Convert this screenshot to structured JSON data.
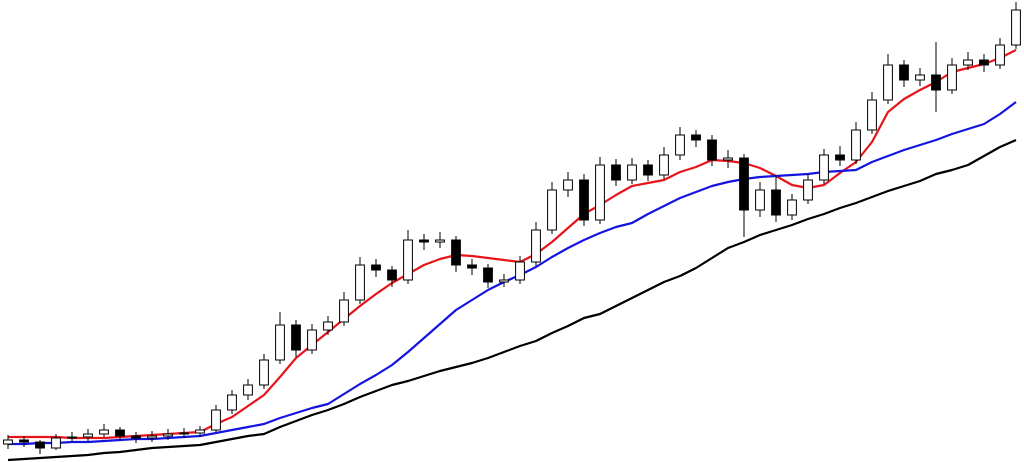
{
  "chart_data": {
    "type": "candlestick",
    "x": [
      0,
      1,
      2,
      3,
      4,
      5,
      6,
      7,
      8,
      9,
      10,
      11,
      12,
      13,
      14,
      15,
      16,
      17,
      18,
      19,
      20,
      21,
      22,
      23,
      24,
      25,
      26,
      27,
      28,
      29,
      30,
      31,
      32,
      33,
      34,
      35,
      36,
      37,
      38,
      39,
      40,
      41,
      42,
      43,
      44,
      45,
      46,
      47,
      48,
      49,
      50,
      51,
      52,
      53,
      54,
      55,
      56,
      57,
      58,
      59,
      60,
      61,
      62,
      63
    ],
    "open": [
      18,
      22,
      20,
      14,
      24,
      25,
      28,
      32,
      26,
      24,
      26,
      28,
      29,
      32,
      52,
      67,
      77,
      102,
      137,
      112,
      132,
      140,
      162,
      197,
      192,
      182,
      222,
      220,
      222,
      197,
      194,
      180,
      182,
      200,
      232,
      272,
      282,
      242,
      297,
      282,
      297,
      287,
      307,
      327,
      322,
      302,
      304,
      252,
      272,
      247,
      262,
      282,
      307,
      302,
      332,
      362,
      397,
      382,
      387,
      372,
      397,
      402,
      397,
      417
    ],
    "high": [
      27,
      26,
      22,
      28,
      30,
      33,
      38,
      35,
      30,
      31,
      33,
      34,
      36,
      57,
      72,
      83,
      108,
      150,
      142,
      138,
      146,
      170,
      205,
      203,
      196,
      232,
      228,
      230,
      226,
      203,
      198,
      188,
      206,
      240,
      280,
      290,
      288,
      305,
      303,
      304,
      302,
      315,
      335,
      332,
      327,
      312,
      308,
      280,
      287,
      268,
      288,
      313,
      316,
      340,
      370,
      408,
      402,
      394,
      420,
      404,
      410,
      408,
      424,
      460
    ],
    "low": [
      13,
      15,
      8,
      12,
      20,
      21,
      25,
      22,
      19,
      20,
      22,
      24,
      25,
      30,
      48,
      62,
      73,
      98,
      105,
      108,
      127,
      136,
      158,
      185,
      175,
      178,
      212,
      214,
      190,
      187,
      174,
      175,
      178,
      196,
      228,
      265,
      236,
      238,
      276,
      278,
      281,
      283,
      302,
      315,
      296,
      294,
      225,
      245,
      240,
      242,
      258,
      278,
      296,
      298,
      328,
      358,
      375,
      376,
      350,
      368,
      392,
      390,
      393,
      413
    ],
    "close": [
      22,
      20,
      14,
      24,
      25,
      28,
      32,
      26,
      24,
      26,
      28,
      29,
      32,
      52,
      67,
      77,
      102,
      137,
      112,
      132,
      140,
      162,
      197,
      192,
      182,
      222,
      220,
      222,
      197,
      194,
      180,
      182,
      200,
      232,
      272,
      282,
      242,
      297,
      282,
      297,
      287,
      307,
      327,
      322,
      302,
      304,
      252,
      272,
      247,
      262,
      282,
      307,
      302,
      332,
      362,
      397,
      382,
      387,
      372,
      397,
      402,
      397,
      417,
      452
    ],
    "up_color": "#ffffff",
    "down_color": "#000000",
    "series": [
      {
        "color": "#e8141c",
        "values": [
          25,
          25,
          25,
          25,
          24,
          24,
          24,
          25,
          26,
          27,
          28,
          29,
          30,
          38,
          45,
          56,
          67,
          85,
          104,
          117,
          130,
          143,
          156,
          168,
          179,
          188,
          197,
          203,
          207,
          206,
          204,
          202,
          200,
          208,
          220,
          234,
          248,
          257,
          267,
          276,
          279,
          282,
          290,
          295,
          302,
          301,
          299,
          294,
          286,
          277,
          274,
          277,
          289,
          300,
          320,
          350,
          363,
          372,
          380,
          390,
          394,
          398,
          404,
          412
        ]
      },
      {
        "color": "#1414e0",
        "values": [
          18,
          18,
          19,
          19,
          20,
          20,
          21,
          22,
          23,
          23,
          24,
          25,
          26,
          29,
          32,
          35,
          38,
          44,
          49,
          54,
          58,
          68,
          78,
          87,
          97,
          110,
          124,
          138,
          152,
          162,
          172,
          180,
          187,
          195,
          205,
          214,
          222,
          229,
          235,
          239,
          248,
          256,
          264,
          270,
          276,
          280,
          283,
          285,
          286,
          287,
          288,
          290,
          291,
          292,
          300,
          306,
          312,
          317,
          322,
          328,
          333,
          338,
          348,
          360
        ]
      },
      {
        "color": "#000000",
        "values": [
          2,
          3,
          4,
          5,
          6,
          7,
          9,
          10,
          12,
          14,
          15,
          16,
          17,
          20,
          23,
          26,
          28,
          35,
          41,
          47,
          52,
          58,
          65,
          71,
          77,
          81,
          86,
          91,
          95,
          99,
          104,
          110,
          116,
          121,
          129,
          136,
          144,
          148,
          156,
          164,
          172,
          180,
          186,
          194,
          204,
          214,
          220,
          227,
          232,
          237,
          243,
          248,
          254,
          259,
          265,
          271,
          276,
          281,
          288,
          292,
          297,
          306,
          315,
          322
        ]
      }
    ],
    "xlim": [
      -0.5,
      63.5
    ],
    "ylim": [
      0,
      462
    ]
  }
}
